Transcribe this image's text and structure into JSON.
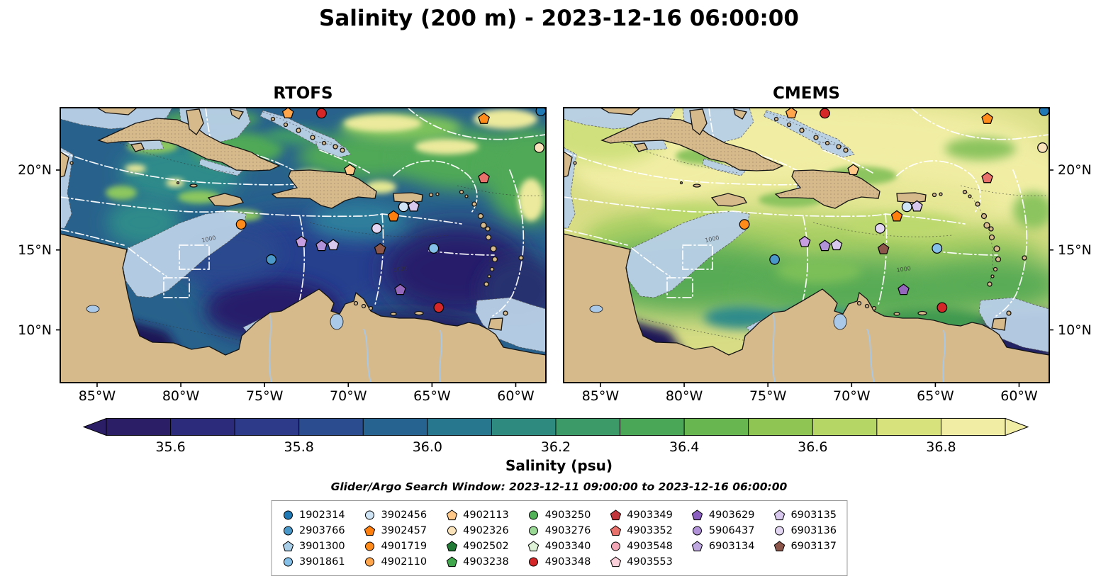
{
  "title": "Salinity (200 m) - 2023-12-16 06:00:00",
  "panels": [
    {
      "title": "RTOFS"
    },
    {
      "title": "CMEMS"
    }
  ],
  "axes": {
    "extent": {
      "lon_min": -87.2,
      "lon_max": -58.2,
      "lat_min": 6.7,
      "lat_max": 23.9
    },
    "lon_ticks": [
      {
        "label": "85°W",
        "lon": -85
      },
      {
        "label": "80°W",
        "lon": -80
      },
      {
        "label": "75°W",
        "lon": -75
      },
      {
        "label": "70°W",
        "lon": -70
      },
      {
        "label": "65°W",
        "lon": -65
      },
      {
        "label": "60°W",
        "lon": -60
      }
    ],
    "lat_ticks": [
      {
        "label": "20°N",
        "lat": 20
      },
      {
        "label": "15°N",
        "lat": 15
      },
      {
        "label": "10°N",
        "lat": 10
      }
    ]
  },
  "colorbar": {
    "label": "Salinity (psu)",
    "vmin": 35.5,
    "vmax": 36.9,
    "ticks": [
      {
        "label": "35.6",
        "value": 35.6
      },
      {
        "label": "35.8",
        "value": 35.8
      },
      {
        "label": "36.0",
        "value": 36.0
      },
      {
        "label": "36.2",
        "value": 36.2
      },
      {
        "label": "36.4",
        "value": 36.4
      },
      {
        "label": "36.6",
        "value": 36.6
      },
      {
        "label": "36.8",
        "value": 36.8
      }
    ],
    "segment_colors": [
      "#2b1e66",
      "#2c2a7a",
      "#2d3a8a",
      "#2b4d90",
      "#276390",
      "#27788e",
      "#2e8a7f",
      "#3b9a67",
      "#4aa757",
      "#68b64f",
      "#8fc653",
      "#b5d564",
      "#d8e27c",
      "#f2eda4"
    ]
  },
  "search_window": "Glider/Argo Search Window: 2023-12-11 09:00:00 to 2023-12-16 06:00:00",
  "map_annotations": {
    "depth_label": "1000"
  },
  "colors": {
    "land": "#d7ba8c",
    "shallow_mask": "#b8cfe6",
    "coastline": "#141414",
    "eez_line": "#ffffff"
  },
  "legend": {
    "columns": [
      [
        {
          "id": "1902314",
          "shape": "circle",
          "color": "#2078b4"
        },
        {
          "id": "2903766",
          "shape": "circle",
          "color": "#4a98c9"
        },
        {
          "id": "3901300",
          "shape": "pentagon",
          "color": "#a8cde6"
        },
        {
          "id": "3901861",
          "shape": "circle",
          "color": "#85c0e8"
        }
      ],
      [
        {
          "id": "3902456",
          "shape": "circle",
          "color": "#cfe5f5"
        },
        {
          "id": "3902457",
          "shape": "pentagon",
          "color": "#ff7f0e"
        },
        {
          "id": "4901719",
          "shape": "circle",
          "color": "#ff8c1a"
        },
        {
          "id": "4902110",
          "shape": "circle",
          "color": "#ffa64d"
        }
      ],
      [
        {
          "id": "4902113",
          "shape": "pentagon",
          "color": "#ffc788"
        },
        {
          "id": "4902326",
          "shape": "circle",
          "color": "#fae3bb"
        },
        {
          "id": "4902502",
          "shape": "pentagon",
          "color": "#217a36"
        },
        {
          "id": "4903238",
          "shape": "pentagon",
          "color": "#41a74d"
        }
      ],
      [
        {
          "id": "4903250",
          "shape": "circle",
          "color": "#52b258"
        },
        {
          "id": "4903276",
          "shape": "circle",
          "color": "#9ad896"
        },
        {
          "id": "4903340",
          "shape": "pentagon",
          "color": "#ddf2d6"
        },
        {
          "id": "4903348",
          "shape": "circle",
          "color": "#d62728"
        }
      ],
      [
        {
          "id": "4903349",
          "shape": "pentagon",
          "color": "#c0343a"
        },
        {
          "id": "4903352",
          "shape": "pentagon",
          "color": "#e8716b"
        },
        {
          "id": "4903548",
          "shape": "circle",
          "color": "#f2a6b6"
        },
        {
          "id": "4903553",
          "shape": "pentagon",
          "color": "#fbd0da"
        }
      ],
      [
        {
          "id": "4903629",
          "shape": "pentagon",
          "color": "#8a5fc0"
        },
        {
          "id": "5906437",
          "shape": "circle",
          "color": "#b192d8"
        },
        {
          "id": "6903134",
          "shape": "pentagon",
          "color": "#bfa8e0"
        }
      ],
      [
        {
          "id": "6903135",
          "shape": "pentagon",
          "color": "#d8c8ee"
        },
        {
          "id": "6903136",
          "shape": "circle",
          "color": "#e2d6f2"
        },
        {
          "id": "6903137",
          "shape": "pentagon",
          "color": "#8c564b"
        }
      ]
    ]
  },
  "chart_data": {
    "type": "heatmap",
    "title": "Salinity (200 m) - 2023-12-16 06:00:00",
    "variable": "Salinity (psu)",
    "depth_m": 200,
    "valid_time": "2023-12-16 06:00:00",
    "panels": [
      "RTOFS",
      "CMEMS"
    ],
    "colorbar_label": "Salinity (psu)",
    "colorbar_range": [
      35.5,
      36.9
    ],
    "colorbar_ticks": [
      35.6,
      35.8,
      36.0,
      36.2,
      36.4,
      36.6,
      36.8
    ],
    "lon_ticks_deg_w": [
      85,
      80,
      75,
      70,
      65,
      60
    ],
    "lat_ticks_deg_n": [
      10,
      15,
      20
    ],
    "search_window_start": "2023-12-11 09:00:00",
    "search_window_end": "2023-12-16 06:00:00",
    "platform_ids": [
      "1902314",
      "2903766",
      "3901300",
      "3901861",
      "3902456",
      "3902457",
      "4901719",
      "4902110",
      "4902113",
      "4902326",
      "4902502",
      "4903238",
      "4903250",
      "4903276",
      "4903340",
      "4903348",
      "4903349",
      "4903352",
      "4903548",
      "4903553",
      "4903629",
      "5906437",
      "6903134",
      "6903135",
      "6903136",
      "6903137"
    ],
    "markers": [
      {
        "shape": "pentagon",
        "color": "#ffa64d",
        "lon": -73.6,
        "lat": 23.55
      },
      {
        "shape": "circle",
        "color": "#d62728",
        "lon": -71.6,
        "lat": 23.55
      },
      {
        "shape": "pentagon",
        "color": "#ff8c1a",
        "lon": -61.9,
        "lat": 23.2
      },
      {
        "shape": "circle",
        "color": "#2078b4",
        "lon": -58.5,
        "lat": 23.7
      },
      {
        "shape": "circle",
        "color": "#fae3bb",
        "lon": -58.6,
        "lat": 21.4
      },
      {
        "shape": "pentagon",
        "color": "#ffc788",
        "lon": -69.9,
        "lat": 20.0
      },
      {
        "shape": "pentagon",
        "color": "#e8716b",
        "lon": -61.9,
        "lat": 19.5
      },
      {
        "shape": "circle",
        "color": "#cfe5f5",
        "lon": -66.7,
        "lat": 17.7
      },
      {
        "shape": "pentagon",
        "color": "#d8c8ee",
        "lon": -66.1,
        "lat": 17.72
      },
      {
        "shape": "pentagon",
        "color": "#ff7f0e",
        "lon": -67.3,
        "lat": 17.1
      },
      {
        "shape": "circle",
        "color": "#ff8c1a",
        "lon": -76.4,
        "lat": 16.6
      },
      {
        "shape": "circle",
        "color": "#e2d6f2",
        "lon": -68.3,
        "lat": 16.35
      },
      {
        "shape": "pentagon",
        "color": "#c79fe0",
        "lon": -72.8,
        "lat": 15.5
      },
      {
        "shape": "pentagon",
        "color": "#b192d8",
        "lon": -71.6,
        "lat": 15.25
      },
      {
        "shape": "pentagon",
        "color": "#d8c8ee",
        "lon": -70.9,
        "lat": 15.3
      },
      {
        "shape": "pentagon",
        "color": "#8c564b",
        "lon": -68.1,
        "lat": 15.05
      },
      {
        "shape": "circle",
        "color": "#85c0e8",
        "lon": -64.9,
        "lat": 15.1
      },
      {
        "shape": "circle",
        "color": "#4a98c9",
        "lon": -74.6,
        "lat": 14.4
      },
      {
        "shape": "pentagon",
        "color": "#9467bd",
        "lon": -66.9,
        "lat": 12.5
      },
      {
        "shape": "circle",
        "color": "#d62728",
        "lon": -64.6,
        "lat": 11.4
      }
    ]
  }
}
